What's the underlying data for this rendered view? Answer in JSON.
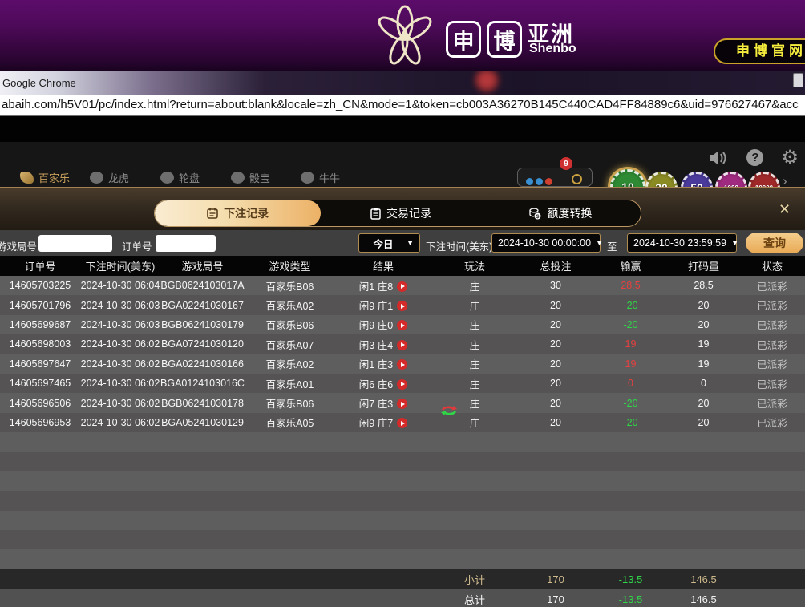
{
  "brand": {
    "char1": "申",
    "char2": "博",
    "region": "亚洲",
    "latin": "Shenbo",
    "official_button": "申博官网"
  },
  "titlebar": {
    "app_name": "Google Chrome",
    "url": "abaih.com/h5V01/pc/index.html?return=about:blank&locale=zh_CN&mode=1&token=cb003A36270B145C440CAD4FF84889c6&uid=976627467&acc"
  },
  "top_icons": {
    "help_glyph": "?",
    "gear_glyph": "⚙"
  },
  "game_nav": {
    "items": [
      {
        "label": "百家乐",
        "active": true
      },
      {
        "label": "龙虎",
        "active": false
      },
      {
        "label": "轮盘",
        "active": false
      },
      {
        "label": "骰宝",
        "active": false
      },
      {
        "label": "牛牛",
        "active": false
      }
    ],
    "badge_count": "9",
    "dot_colors": [
      "#3a8fd0",
      "#3a8fd0",
      "#d04030"
    ]
  },
  "chips": [
    {
      "value": "10",
      "color": "#2e8b33",
      "selected": true
    },
    {
      "value": "20",
      "color": "#8b8b24",
      "selected": false
    },
    {
      "value": "50",
      "color": "#4a3a9b",
      "selected": false
    },
    {
      "value": "1000",
      "color": "#a02a80",
      "selected": false
    },
    {
      "value": "10000",
      "color": "#a02828",
      "selected": false
    }
  ],
  "chips_more_arrow": "›",
  "tabs": {
    "bet_records": "下注记录",
    "transaction_records": "交易记录",
    "credit_transfer": "额度转换",
    "close": "✕"
  },
  "filters": {
    "round_label": "游戏局号",
    "order_label": "订单号",
    "range_selected": "今日",
    "time_label": "下注时间(美东)",
    "date_from": "2024-10-30 00:00:00",
    "to_label": "至",
    "date_to": "2024-10-30 23:59:59",
    "query_button": "查询",
    "caret": "▼"
  },
  "table": {
    "headers": [
      "订单号",
      "下注时间(美东)",
      "游戏局号",
      "游戏类型",
      "结果",
      "玩法",
      "总投注",
      "输赢",
      "打码量",
      "状态"
    ],
    "rows": [
      {
        "order_id": "14605703225",
        "bet_time": "2024-10-30 06:04",
        "round_id": "BGB0624103017A",
        "game_type": "百家乐B06",
        "result": "闲1 庄8",
        "play": "庄",
        "total_bet": "30",
        "win_loss": "28.5",
        "rolling": "28.5",
        "status": "已派彩"
      },
      {
        "order_id": "14605701796",
        "bet_time": "2024-10-30 06:03",
        "round_id": "BGA02241030167",
        "game_type": "百家乐A02",
        "result": "闲9 庄1",
        "play": "庄",
        "total_bet": "20",
        "win_loss": "-20",
        "rolling": "20",
        "status": "已派彩"
      },
      {
        "order_id": "14605699687",
        "bet_time": "2024-10-30 06:03",
        "round_id": "BGB06241030179",
        "game_type": "百家乐B06",
        "result": "闲9 庄0",
        "play": "庄",
        "total_bet": "20",
        "win_loss": "-20",
        "rolling": "20",
        "status": "已派彩"
      },
      {
        "order_id": "14605698003",
        "bet_time": "2024-10-30 06:02",
        "round_id": "BGA07241030120",
        "game_type": "百家乐A07",
        "result": "闲3 庄4",
        "play": "庄",
        "total_bet": "20",
        "win_loss": "19",
        "rolling": "19",
        "status": "已派彩"
      },
      {
        "order_id": "14605697647",
        "bet_time": "2024-10-30 06:02",
        "round_id": "BGA02241030166",
        "game_type": "百家乐A02",
        "result": "闲1 庄3",
        "play": "庄",
        "total_bet": "20",
        "win_loss": "19",
        "rolling": "19",
        "status": "已派彩"
      },
      {
        "order_id": "14605697465",
        "bet_time": "2024-10-30 06:02",
        "round_id": "BGA0124103016C",
        "game_type": "百家乐A01",
        "result": "闲6 庄6",
        "play": "庄",
        "total_bet": "20",
        "win_loss": "0",
        "rolling": "0",
        "status": "已派彩"
      },
      {
        "order_id": "14605696506",
        "bet_time": "2024-10-30 06:02",
        "round_id": "BGB06241030178",
        "game_type": "百家乐B06",
        "result": "闲7 庄3",
        "play": "庄",
        "total_bet": "20",
        "win_loss": "-20",
        "rolling": "20",
        "status": "已派彩"
      },
      {
        "order_id": "14605696953",
        "bet_time": "2024-10-30 06:02",
        "round_id": "BGA05241030129",
        "game_type": "百家乐A05",
        "result": "闲9 庄7",
        "play": "庄",
        "total_bet": "20",
        "win_loss": "-20",
        "rolling": "20",
        "status": "已派彩"
      }
    ]
  },
  "summary": {
    "subtotal": {
      "label": "小计",
      "total_bet": "170",
      "win_loss": "-13.5",
      "rolling": "146.5"
    },
    "total": {
      "label": "总计",
      "total_bet": "170",
      "win_loss": "-13.5",
      "rolling": "146.5"
    }
  },
  "colors": {
    "accent_gold": "#c9a05c",
    "win_red": "#e64040",
    "loss_green": "#2fd648",
    "header_purple": "#5c0c6b"
  }
}
